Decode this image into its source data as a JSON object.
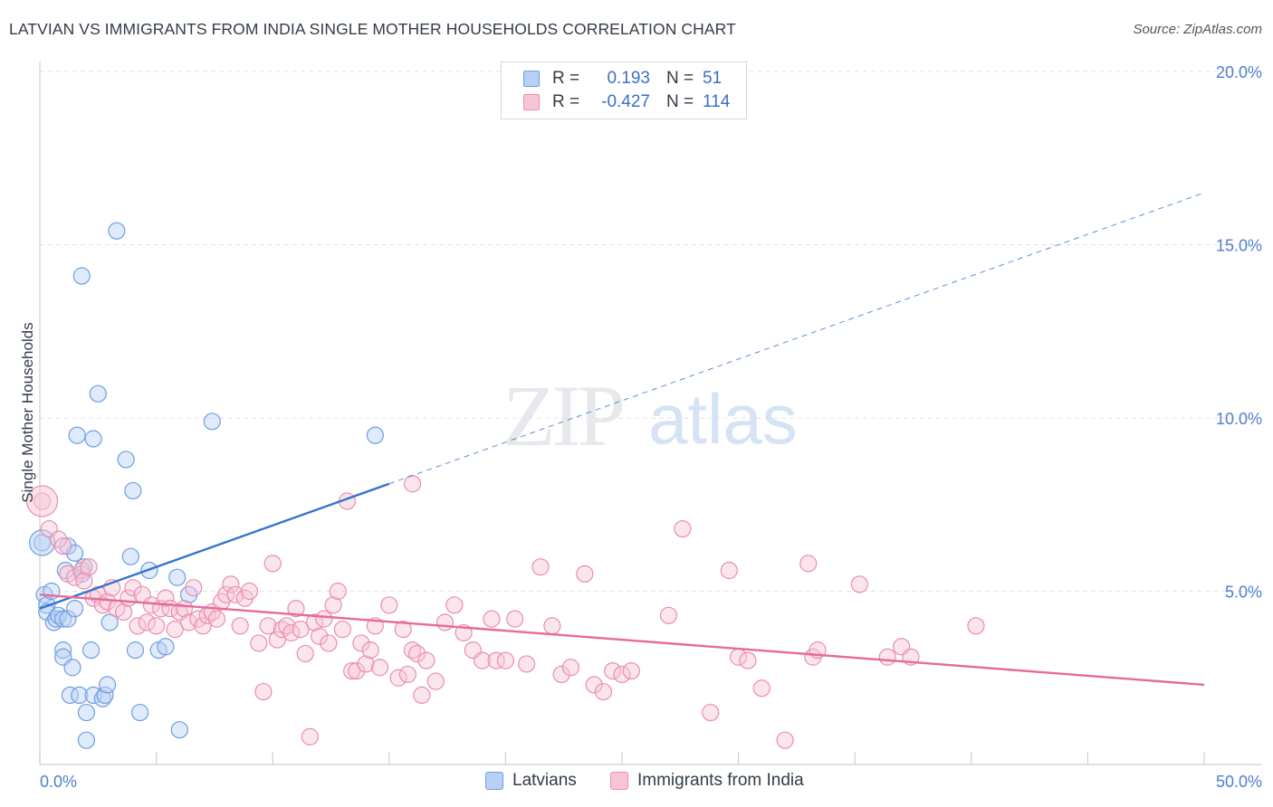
{
  "title": "LATVIAN VS IMMIGRANTS FROM INDIA SINGLE MOTHER HOUSEHOLDS CORRELATION CHART",
  "source": "Source: ZipAtlas.com",
  "watermark": {
    "zip": "ZIP",
    "atlas": "atlas"
  },
  "colors": {
    "blue": "#6f9ee0",
    "blue_fill": "#b7d0f3",
    "blue_line": "#3374cf",
    "pink": "#ea8db0",
    "pink_fill": "#f7c5d7",
    "pink_line": "#e76a98",
    "tick_text": "#4e7fcf"
  },
  "legend": {
    "rows": [
      {
        "r_label": "R =",
        "r_value": "0.193",
        "n_label": "N =",
        "n_value": "51"
      },
      {
        "r_label": "R =",
        "r_value": "-0.427",
        "n_label": "N =",
        "n_value": "114"
      }
    ]
  },
  "chart_data": {
    "type": "scatter",
    "title": "LATVIAN VS IMMIGRANTS FROM INDIA SINGLE MOTHER HOUSEHOLDS CORRELATION CHART",
    "xlabel": "",
    "ylabel": "Single Mother Households",
    "xlim": [
      0,
      50
    ],
    "ylim": [
      0,
      20
    ],
    "x_tick_labels": [
      "0.0%",
      "50.0%"
    ],
    "y_ticks": [
      5,
      10,
      15,
      20
    ],
    "y_tick_labels": [
      "5.0%",
      "10.0%",
      "15.0%",
      "20.0%"
    ],
    "grid": "horizontal dashed",
    "legend_position": "bottom-center",
    "series": [
      {
        "name": "Latvians",
        "r": 0.193,
        "n": 51,
        "trend": {
          "x": [
            0,
            15
          ],
          "y": [
            4.5,
            8.1
          ],
          "extended_x": [
            15,
            50
          ],
          "extended_y": [
            8.1,
            16.5
          ]
        },
        "points": [
          [
            0.1,
            6.4
          ],
          [
            0.2,
            4.9
          ],
          [
            0.3,
            4.6
          ],
          [
            0.3,
            4.4
          ],
          [
            0.5,
            5.0
          ],
          [
            0.6,
            4.1
          ],
          [
            0.7,
            4.2
          ],
          [
            0.8,
            4.3
          ],
          [
            1.0,
            3.3
          ],
          [
            1.0,
            4.2
          ],
          [
            1.0,
            3.1
          ],
          [
            1.1,
            5.6
          ],
          [
            1.2,
            4.2
          ],
          [
            1.2,
            6.3
          ],
          [
            1.3,
            2.0
          ],
          [
            1.4,
            2.8
          ],
          [
            1.5,
            4.5
          ],
          [
            1.5,
            6.1
          ],
          [
            1.6,
            9.5
          ],
          [
            1.7,
            2.0
          ],
          [
            1.8,
            5.5
          ],
          [
            1.9,
            5.7
          ],
          [
            2.0,
            1.5
          ],
          [
            2.0,
            0.7
          ],
          [
            2.2,
            3.3
          ],
          [
            2.3,
            9.4
          ],
          [
            2.3,
            2.0
          ],
          [
            2.5,
            10.7
          ],
          [
            2.7,
            1.9
          ],
          [
            2.8,
            2.0
          ],
          [
            2.9,
            2.3
          ],
          [
            3.0,
            4.1
          ],
          [
            3.3,
            15.4
          ],
          [
            3.7,
            8.8
          ],
          [
            3.9,
            6.0
          ],
          [
            4.0,
            7.9
          ],
          [
            4.1,
            3.3
          ],
          [
            4.3,
            1.5
          ],
          [
            4.7,
            5.6
          ],
          [
            5.1,
            3.3
          ],
          [
            5.4,
            3.4
          ],
          [
            5.9,
            5.4
          ],
          [
            6.0,
            1.0
          ],
          [
            6.4,
            4.9
          ],
          [
            7.4,
            9.9
          ],
          [
            14.4,
            9.5
          ],
          [
            1.8,
            14.1
          ]
        ]
      },
      {
        "name": "Immigrants from India",
        "r": -0.427,
        "n": 114,
        "trend": {
          "x": [
            0,
            50
          ],
          "y": [
            4.9,
            2.3
          ]
        },
        "points": [
          [
            0.1,
            7.6
          ],
          [
            0.4,
            6.8
          ],
          [
            0.8,
            6.5
          ],
          [
            1.0,
            6.3
          ],
          [
            1.2,
            5.5
          ],
          [
            1.5,
            5.4
          ],
          [
            1.8,
            5.6
          ],
          [
            1.9,
            5.3
          ],
          [
            2.1,
            5.7
          ],
          [
            2.3,
            4.8
          ],
          [
            2.5,
            4.9
          ],
          [
            2.7,
            4.6
          ],
          [
            2.9,
            4.7
          ],
          [
            3.1,
            5.1
          ],
          [
            3.3,
            4.5
          ],
          [
            3.6,
            4.4
          ],
          [
            3.8,
            4.8
          ],
          [
            4.0,
            5.1
          ],
          [
            4.2,
            4.0
          ],
          [
            4.4,
            4.9
          ],
          [
            4.6,
            4.1
          ],
          [
            4.8,
            4.6
          ],
          [
            5.0,
            4.0
          ],
          [
            5.2,
            4.5
          ],
          [
            5.4,
            4.8
          ],
          [
            5.6,
            4.5
          ],
          [
            5.8,
            3.9
          ],
          [
            6.0,
            4.4
          ],
          [
            6.2,
            4.5
          ],
          [
            6.4,
            4.1
          ],
          [
            6.6,
            5.1
          ],
          [
            6.8,
            4.2
          ],
          [
            7.0,
            4.0
          ],
          [
            7.2,
            4.3
          ],
          [
            7.4,
            4.4
          ],
          [
            7.6,
            4.2
          ],
          [
            7.8,
            4.7
          ],
          [
            8.0,
            4.9
          ],
          [
            8.2,
            5.2
          ],
          [
            8.4,
            4.9
          ],
          [
            8.6,
            4.0
          ],
          [
            8.8,
            4.8
          ],
          [
            9.0,
            5.0
          ],
          [
            9.4,
            3.5
          ],
          [
            9.6,
            2.1
          ],
          [
            9.8,
            4.0
          ],
          [
            10.0,
            5.8
          ],
          [
            10.2,
            3.6
          ],
          [
            10.4,
            3.9
          ],
          [
            10.6,
            4.0
          ],
          [
            10.8,
            3.8
          ],
          [
            11.0,
            4.5
          ],
          [
            11.2,
            3.9
          ],
          [
            11.4,
            3.2
          ],
          [
            11.6,
            0.8
          ],
          [
            11.8,
            4.1
          ],
          [
            12.0,
            3.7
          ],
          [
            12.2,
            4.2
          ],
          [
            12.4,
            3.5
          ],
          [
            12.6,
            4.6
          ],
          [
            12.8,
            5.0
          ],
          [
            13.0,
            3.9
          ],
          [
            13.2,
            7.6
          ],
          [
            13.4,
            2.7
          ],
          [
            13.6,
            2.7
          ],
          [
            13.8,
            3.5
          ],
          [
            14.0,
            2.9
          ],
          [
            14.2,
            3.3
          ],
          [
            14.4,
            4.0
          ],
          [
            14.6,
            2.8
          ],
          [
            15.0,
            4.6
          ],
          [
            15.4,
            2.5
          ],
          [
            15.6,
            3.9
          ],
          [
            16.0,
            3.3
          ],
          [
            16.2,
            3.2
          ],
          [
            16.4,
            2.0
          ],
          [
            16.6,
            3.0
          ],
          [
            17.0,
            2.4
          ],
          [
            17.4,
            4.1
          ],
          [
            17.8,
            4.6
          ],
          [
            18.2,
            3.8
          ],
          [
            18.6,
            3.3
          ],
          [
            19.0,
            3.0
          ],
          [
            19.4,
            4.2
          ],
          [
            19.6,
            3.0
          ],
          [
            20.0,
            3.0
          ],
          [
            20.4,
            4.2
          ],
          [
            20.9,
            2.9
          ],
          [
            21.5,
            5.7
          ],
          [
            22.0,
            4.0
          ],
          [
            22.4,
            2.6
          ],
          [
            22.8,
            2.8
          ],
          [
            23.4,
            5.5
          ],
          [
            23.8,
            2.3
          ],
          [
            24.2,
            2.1
          ],
          [
            24.6,
            2.7
          ],
          [
            25.0,
            2.6
          ],
          [
            25.4,
            2.7
          ],
          [
            27.0,
            4.3
          ],
          [
            27.6,
            6.8
          ],
          [
            28.8,
            1.5
          ],
          [
            29.6,
            5.6
          ],
          [
            30.0,
            3.1
          ],
          [
            30.4,
            3.0
          ],
          [
            31.0,
            2.2
          ],
          [
            32.0,
            0.7
          ],
          [
            33.0,
            5.8
          ],
          [
            33.2,
            3.1
          ],
          [
            33.4,
            3.3
          ],
          [
            35.2,
            5.2
          ],
          [
            36.4,
            3.1
          ],
          [
            37.0,
            3.4
          ],
          [
            37.4,
            3.1
          ],
          [
            40.2,
            4.0
          ],
          [
            16.0,
            8.1
          ],
          [
            15.8,
            2.6
          ]
        ]
      }
    ]
  },
  "bottom_legend": [
    "Latvians",
    "Immigrants from India"
  ]
}
